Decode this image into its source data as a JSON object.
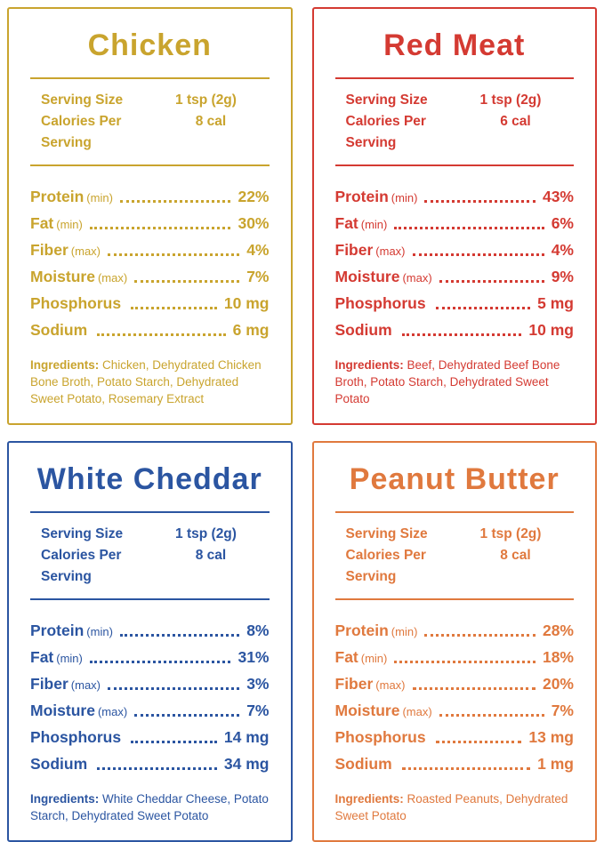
{
  "cards": [
    {
      "id": "chicken",
      "title": "Chicken",
      "color": "#c9a42e",
      "serving": [
        {
          "label": "Serving Size",
          "value": "1 tsp (2g)"
        },
        {
          "label": "Calories Per Serving",
          "value": "8 cal"
        }
      ],
      "nutrients": [
        {
          "name": "Protein",
          "qual": "(min)",
          "value": "22%"
        },
        {
          "name": "Fat",
          "qual": "(min)",
          "value": "30%"
        },
        {
          "name": "Fiber",
          "qual": "(max)",
          "value": "4%"
        },
        {
          "name": "Moisture",
          "qual": "(max)",
          "value": "7%"
        },
        {
          "name": "Phosphorus",
          "qual": "",
          "value": "10 mg"
        },
        {
          "name": "Sodium",
          "qual": "",
          "value": "6 mg"
        }
      ],
      "ingredients_label": "Ingredients:",
      "ingredients": " Chicken, Dehydrated Chicken Bone Broth, Potato Starch, Dehydrated Sweet Potato, Rosemary Extract"
    },
    {
      "id": "red-meat",
      "title": "Red Meat",
      "color": "#d43a32",
      "serving": [
        {
          "label": "Serving Size",
          "value": "1 tsp (2g)"
        },
        {
          "label": "Calories Per Serving",
          "value": "6 cal"
        }
      ],
      "nutrients": [
        {
          "name": "Protein",
          "qual": "(min)",
          "value": "43%"
        },
        {
          "name": "Fat",
          "qual": "(min)",
          "value": "6%"
        },
        {
          "name": "Fiber",
          "qual": "(max)",
          "value": "4%"
        },
        {
          "name": "Moisture",
          "qual": "(max)",
          "value": "9%"
        },
        {
          "name": "Phosphorus",
          "qual": "",
          "value": "5 mg"
        },
        {
          "name": "Sodium",
          "qual": "",
          "value": "10 mg"
        }
      ],
      "ingredients_label": "Ingredients:",
      "ingredients": " Beef, Dehydrated Beef Bone Broth, Potato Starch, Dehydrated Sweet Potato"
    },
    {
      "id": "white-cheddar",
      "title": "White Cheddar",
      "color": "#2b55a1",
      "serving": [
        {
          "label": "Serving Size",
          "value": "1 tsp (2g)"
        },
        {
          "label": "Calories Per Serving",
          "value": "8 cal"
        }
      ],
      "nutrients": [
        {
          "name": "Protein",
          "qual": "(min)",
          "value": "8%"
        },
        {
          "name": "Fat",
          "qual": "(min)",
          "value": "31%"
        },
        {
          "name": "Fiber",
          "qual": "(max)",
          "value": "3%"
        },
        {
          "name": "Moisture",
          "qual": "(max)",
          "value": "7%"
        },
        {
          "name": "Phosphorus",
          "qual": "",
          "value": "14 mg"
        },
        {
          "name": "Sodium",
          "qual": "",
          "value": "34 mg"
        }
      ],
      "ingredients_label": "Ingredients:",
      "ingredients": " White Cheddar Cheese, Potato Starch, Dehydrated Sweet Potato"
    },
    {
      "id": "peanut-butter",
      "title": "Peanut Butter",
      "color": "#e0793e",
      "serving": [
        {
          "label": "Serving Size",
          "value": "1 tsp (2g)"
        },
        {
          "label": "Calories Per Serving",
          "value": "8 cal"
        }
      ],
      "nutrients": [
        {
          "name": "Protein",
          "qual": "(min)",
          "value": "28%"
        },
        {
          "name": "Fat",
          "qual": "(min)",
          "value": "18%"
        },
        {
          "name": "Fiber",
          "qual": "(max)",
          "value": "20%"
        },
        {
          "name": "Moisture",
          "qual": "(max)",
          "value": "7%"
        },
        {
          "name": "Phosphorus",
          "qual": "",
          "value": "13 mg"
        },
        {
          "name": "Sodium",
          "qual": "",
          "value": "1 mg"
        }
      ],
      "ingredients_label": "Ingredients:",
      "ingredients": " Roasted Peanuts, Dehydrated Sweet Potato"
    }
  ]
}
